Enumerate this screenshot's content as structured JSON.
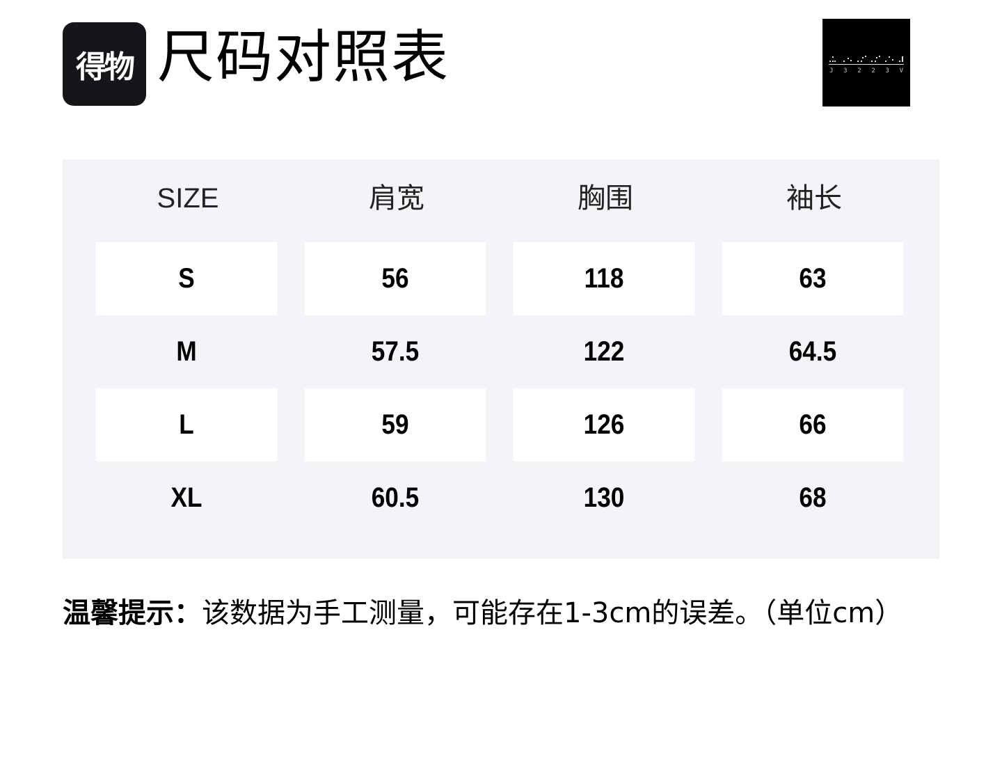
{
  "header": {
    "brand_logo_text": "得物",
    "title": "尺码对照表",
    "partner_logo_text": "J3223V"
  },
  "table": {
    "columns": [
      "SIZE",
      "肩宽",
      "胸围",
      "袖长"
    ],
    "rows": [
      [
        "S",
        "56",
        "118",
        "63"
      ],
      [
        "M",
        "57.5",
        "122",
        "64.5"
      ],
      [
        "L",
        "59",
        "126",
        "66"
      ],
      [
        "XL",
        "60.5",
        "130",
        "68"
      ]
    ]
  },
  "note": {
    "label": "温馨提示：",
    "text": "该数据为手工测量，可能存在1-3cm的误差。（单位cm）"
  },
  "colors": {
    "table_bg": "#f4f4f8",
    "brand_bg": "#16161a"
  }
}
